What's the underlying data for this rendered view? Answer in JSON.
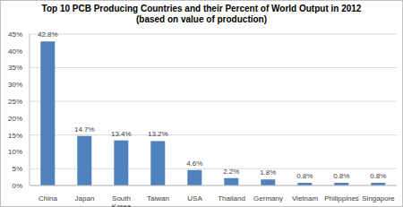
{
  "chart_data": {
    "type": "bar",
    "title": "Top 10 PCB Producing Countries and their Percent of World Output in 2012",
    "subtitle": "(based on value of production)",
    "categories": [
      "China",
      "Japan",
      "South Korea",
      "Taiwan",
      "USA",
      "Thailand",
      "Germany",
      "Vietnam",
      "Philippines",
      "Singapore"
    ],
    "values": [
      42.8,
      14.7,
      13.4,
      13.2,
      4.6,
      2.2,
      1.8,
      0.8,
      0.8,
      0.8
    ],
    "value_labels": [
      "42.8%",
      "14.7%",
      "13.4%",
      "13.2%",
      "4.6%",
      "2.2%",
      "1.8%",
      "0.8%",
      "0.8%",
      "0.8%"
    ],
    "color": "#4f81bd",
    "ylim": [
      0,
      45
    ],
    "yticks": [
      {
        "value": 0,
        "label": "0%"
      },
      {
        "value": 5,
        "label": "5%"
      },
      {
        "value": 10,
        "label": "10%"
      },
      {
        "value": 15,
        "label": "15%"
      },
      {
        "value": 20,
        "label": "20%"
      },
      {
        "value": 25,
        "label": "25%"
      },
      {
        "value": 30,
        "label": "30%"
      },
      {
        "value": 35,
        "label": "35%"
      },
      {
        "value": 40,
        "label": "40%"
      },
      {
        "value": 45,
        "label": "45%"
      }
    ],
    "grid": true,
    "data_labels": true
  }
}
